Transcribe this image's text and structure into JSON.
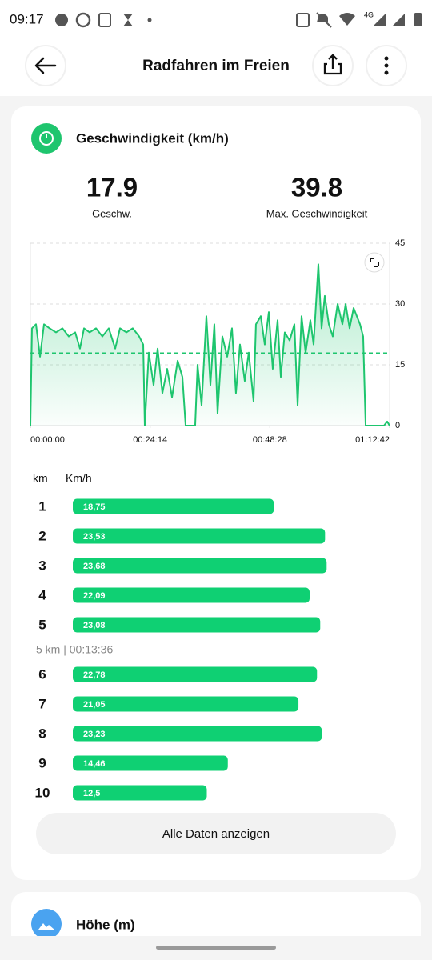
{
  "status_bar": {
    "time": "09:17",
    "network": "4G"
  },
  "header": {
    "title": "Radfahren im Freien"
  },
  "speed_card": {
    "title": "Geschwindigkeit (km/h)",
    "stats": [
      {
        "value": 17.9,
        "label": "Geschw."
      },
      {
        "value": 39.8,
        "label": "Max. Geschwindigkeit"
      }
    ],
    "chart_data": {
      "type": "line",
      "x": [
        0,
        19,
        68,
        117,
        165,
        233,
        311,
        389,
        466,
        544,
        602,
        651,
        719,
        797,
        874,
        952,
        1030,
        1088,
        1166,
        1243,
        1321,
        1370,
        1389,
        1438,
        1496,
        1545,
        1603,
        1661,
        1720,
        1788,
        1846,
        1885,
        2001,
        2030,
        2079,
        2137,
        2186,
        2234,
        2273,
        2331,
        2390,
        2448,
        2496,
        2545,
        2603,
        2652,
        2710,
        2739,
        2798,
        2846,
        2895,
        2943,
        3002,
        3041,
        3089,
        3148,
        3206,
        3245,
        3293,
        3342,
        3400,
        3439,
        3497,
        3536,
        3575,
        3624,
        3672,
        3731,
        3789,
        3828,
        3876,
        3925,
        4003,
        4041,
        4071,
        4294,
        4333,
        4362
      ],
      "values": [
        0,
        24,
        25,
        17,
        25,
        24,
        23,
        24,
        22,
        23,
        19,
        24,
        23,
        24,
        22,
        24,
        19,
        24,
        23,
        24,
        22,
        20,
        0,
        18,
        10,
        19,
        8,
        14,
        7,
        16,
        12,
        0,
        0,
        15,
        5,
        27,
        10,
        25,
        3,
        22,
        17,
        24,
        8,
        20,
        11,
        18,
        6,
        25,
        27,
        20,
        28,
        14,
        26,
        12,
        23,
        21,
        25,
        5,
        27,
        18,
        26,
        20,
        39.8,
        24,
        32,
        25,
        22,
        30,
        25,
        30,
        24,
        29,
        25,
        22,
        0,
        0,
        1,
        0
      ],
      "xlim": [
        0,
        4362
      ],
      "xticks": [
        {
          "value": 0,
          "label": "00:00:00"
        },
        {
          "value": 1454,
          "label": "00:24:14"
        },
        {
          "value": 2908,
          "label": "00:48:28"
        },
        {
          "value": 4362,
          "label": "01:12:42"
        }
      ],
      "ylim": [
        0,
        45
      ],
      "yticks": [
        0,
        15,
        30,
        45
      ],
      "color": "#1ec56e",
      "grid": true
    },
    "splits": {
      "headers": [
        "km",
        "Km/h"
      ],
      "xlim": [
        0,
        30
      ],
      "color": "#0fd073",
      "rows": [
        {
          "km": 1,
          "speed": 18.75,
          "label": "18,75"
        },
        {
          "km": 2,
          "speed": 23.53,
          "label": "23,53"
        },
        {
          "km": 3,
          "speed": 23.68,
          "label": "23,68"
        },
        {
          "km": 4,
          "speed": 22.09,
          "label": "22,09"
        },
        {
          "km": 5,
          "speed": 23.08,
          "label": "23,08"
        },
        {
          "km": 6,
          "speed": 22.78,
          "label": "22,78"
        },
        {
          "km": 7,
          "speed": 21.05,
          "label": "21,05"
        },
        {
          "km": 8,
          "speed": 23.23,
          "label": "23,23"
        },
        {
          "km": 9,
          "speed": 14.46,
          "label": "14,46"
        },
        {
          "km": 10,
          "speed": 12.5,
          "label": "12,5"
        }
      ],
      "summary": "5 km | 00:13:36"
    },
    "button": "Alle Daten anzeigen"
  },
  "altitude_card": {
    "title": "Höhe (m)"
  }
}
